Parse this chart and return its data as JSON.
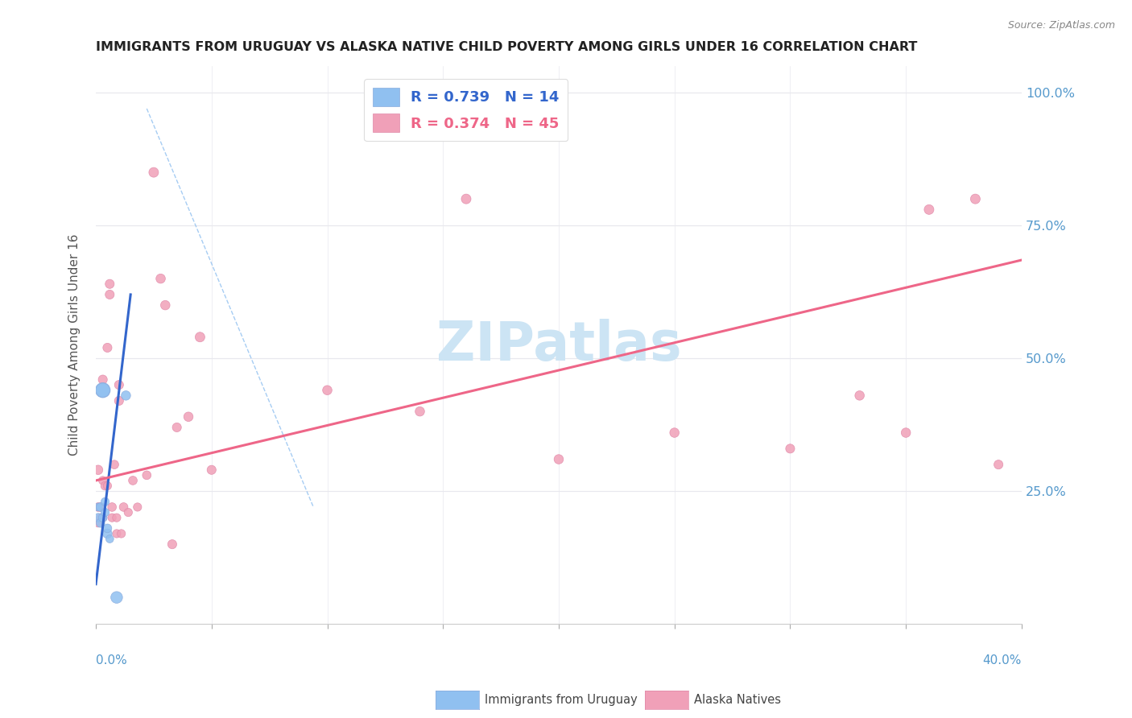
{
  "title": "IMMIGRANTS FROM URUGUAY VS ALASKA NATIVE CHILD POVERTY AMONG GIRLS UNDER 16 CORRELATION CHART",
  "source": "Source: ZipAtlas.com",
  "ylabel": "Child Poverty Among Girls Under 16",
  "watermark": "ZIPatlas",
  "watermark_color": "#cce4f4",
  "bg_color": "#ffffff",
  "blue_color": "#90c0f0",
  "pink_color": "#f0a0b8",
  "blue_line_color": "#3366cc",
  "pink_line_color": "#ee6688",
  "title_color": "#222222",
  "axis_label_color": "#5599cc",
  "grid_color": "#e8e8ee",
  "blue_R": "0.739",
  "blue_N": "14",
  "pink_R": "0.374",
  "pink_N": "45",
  "blue_scatter_x": [
    0.001,
    0.001,
    0.002,
    0.002,
    0.003,
    0.003,
    0.003,
    0.004,
    0.004,
    0.005,
    0.005,
    0.006,
    0.009,
    0.013
  ],
  "blue_scatter_y": [
    0.2,
    0.22,
    0.19,
    0.22,
    0.2,
    0.44,
    0.44,
    0.23,
    0.21,
    0.17,
    0.18,
    0.16,
    0.05,
    0.43
  ],
  "blue_scatter_size": [
    60,
    50,
    60,
    60,
    60,
    180,
    160,
    55,
    55,
    70,
    60,
    50,
    110,
    70
  ],
  "pink_scatter_x": [
    0.001,
    0.001,
    0.001,
    0.002,
    0.002,
    0.003,
    0.003,
    0.003,
    0.004,
    0.005,
    0.005,
    0.006,
    0.006,
    0.007,
    0.007,
    0.008,
    0.009,
    0.009,
    0.01,
    0.01,
    0.011,
    0.012,
    0.014,
    0.016,
    0.018,
    0.022,
    0.025,
    0.028,
    0.03,
    0.033,
    0.035,
    0.04,
    0.045,
    0.05,
    0.1,
    0.14,
    0.16,
    0.2,
    0.25,
    0.3,
    0.33,
    0.35,
    0.36,
    0.38,
    0.39
  ],
  "pink_scatter_y": [
    0.29,
    0.22,
    0.19,
    0.22,
    0.2,
    0.46,
    0.27,
    0.2,
    0.26,
    0.52,
    0.26,
    0.62,
    0.64,
    0.22,
    0.2,
    0.3,
    0.2,
    0.17,
    0.45,
    0.42,
    0.17,
    0.22,
    0.21,
    0.27,
    0.22,
    0.28,
    0.85,
    0.65,
    0.6,
    0.15,
    0.37,
    0.39,
    0.54,
    0.29,
    0.44,
    0.4,
    0.8,
    0.31,
    0.36,
    0.33,
    0.43,
    0.36,
    0.78,
    0.8,
    0.3
  ],
  "pink_scatter_size": [
    70,
    60,
    55,
    60,
    55,
    65,
    55,
    55,
    60,
    65,
    55,
    65,
    65,
    60,
    55,
    60,
    55,
    55,
    65,
    65,
    55,
    60,
    55,
    60,
    55,
    60,
    75,
    70,
    70,
    65,
    65,
    70,
    75,
    65,
    70,
    70,
    75,
    70,
    70,
    65,
    70,
    70,
    75,
    75,
    65
  ],
  "blue_line_x0": 0.0,
  "blue_line_y0": 0.075,
  "blue_line_x1": 0.015,
  "blue_line_y1": 0.62,
  "pink_line_x0": 0.0,
  "pink_line_y0": 0.27,
  "pink_line_x1": 0.4,
  "pink_line_y1": 0.685,
  "dash_line_x0": 0.022,
  "dash_line_y0": 0.97,
  "dash_line_x1": 0.094,
  "dash_line_y1": 0.22,
  "xlim": [
    0.0,
    0.4
  ],
  "ylim": [
    0.0,
    1.05
  ],
  "ytick_positions": [
    0.25,
    0.5,
    0.75,
    1.0
  ],
  "ytick_labels": [
    "25.0%",
    "50.0%",
    "75.0%",
    "100.0%"
  ]
}
